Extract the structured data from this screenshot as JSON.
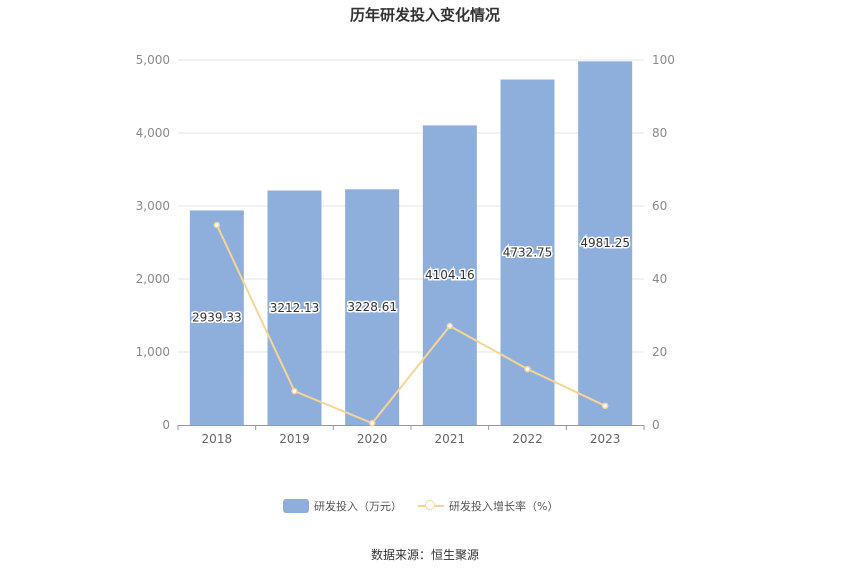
{
  "chart_data": {
    "type": "bar",
    "title": "历年研发投入变化情况",
    "categories": [
      "2018",
      "2019",
      "2020",
      "2021",
      "2022",
      "2023"
    ],
    "series": [
      {
        "name": "研发投入（万元）",
        "type": "bar",
        "axis": "left",
        "color": "#8eaedc",
        "values": [
          2939.33,
          3212.13,
          3228.61,
          4104.16,
          4732.75,
          4981.25
        ],
        "labels": [
          "2939.33",
          "3212.13",
          "3228.61",
          "4104.16",
          "4732.75",
          "4981.25"
        ]
      },
      {
        "name": "研发投入增长率（%）",
        "type": "line",
        "axis": "right",
        "color": "#f8d595",
        "values": [
          54.8,
          9.28,
          0.51,
          27.12,
          15.32,
          5.25
        ]
      }
    ],
    "y_left": {
      "ylim": [
        0,
        5000
      ],
      "ticks": [
        0,
        1000,
        2000,
        3000,
        4000,
        5000
      ],
      "tick_labels": [
        "0",
        "1,000",
        "2,000",
        "3,000",
        "4,000",
        "5,000"
      ]
    },
    "y_right": {
      "ylim": [
        0,
        100
      ],
      "ticks": [
        0,
        20,
        40,
        60,
        80,
        100
      ],
      "tick_labels": [
        "0",
        "20",
        "40",
        "60",
        "80",
        "100"
      ]
    },
    "grid": true,
    "legend_position": "bottom"
  },
  "footer": {
    "source": "数据来源：恒生聚源"
  }
}
